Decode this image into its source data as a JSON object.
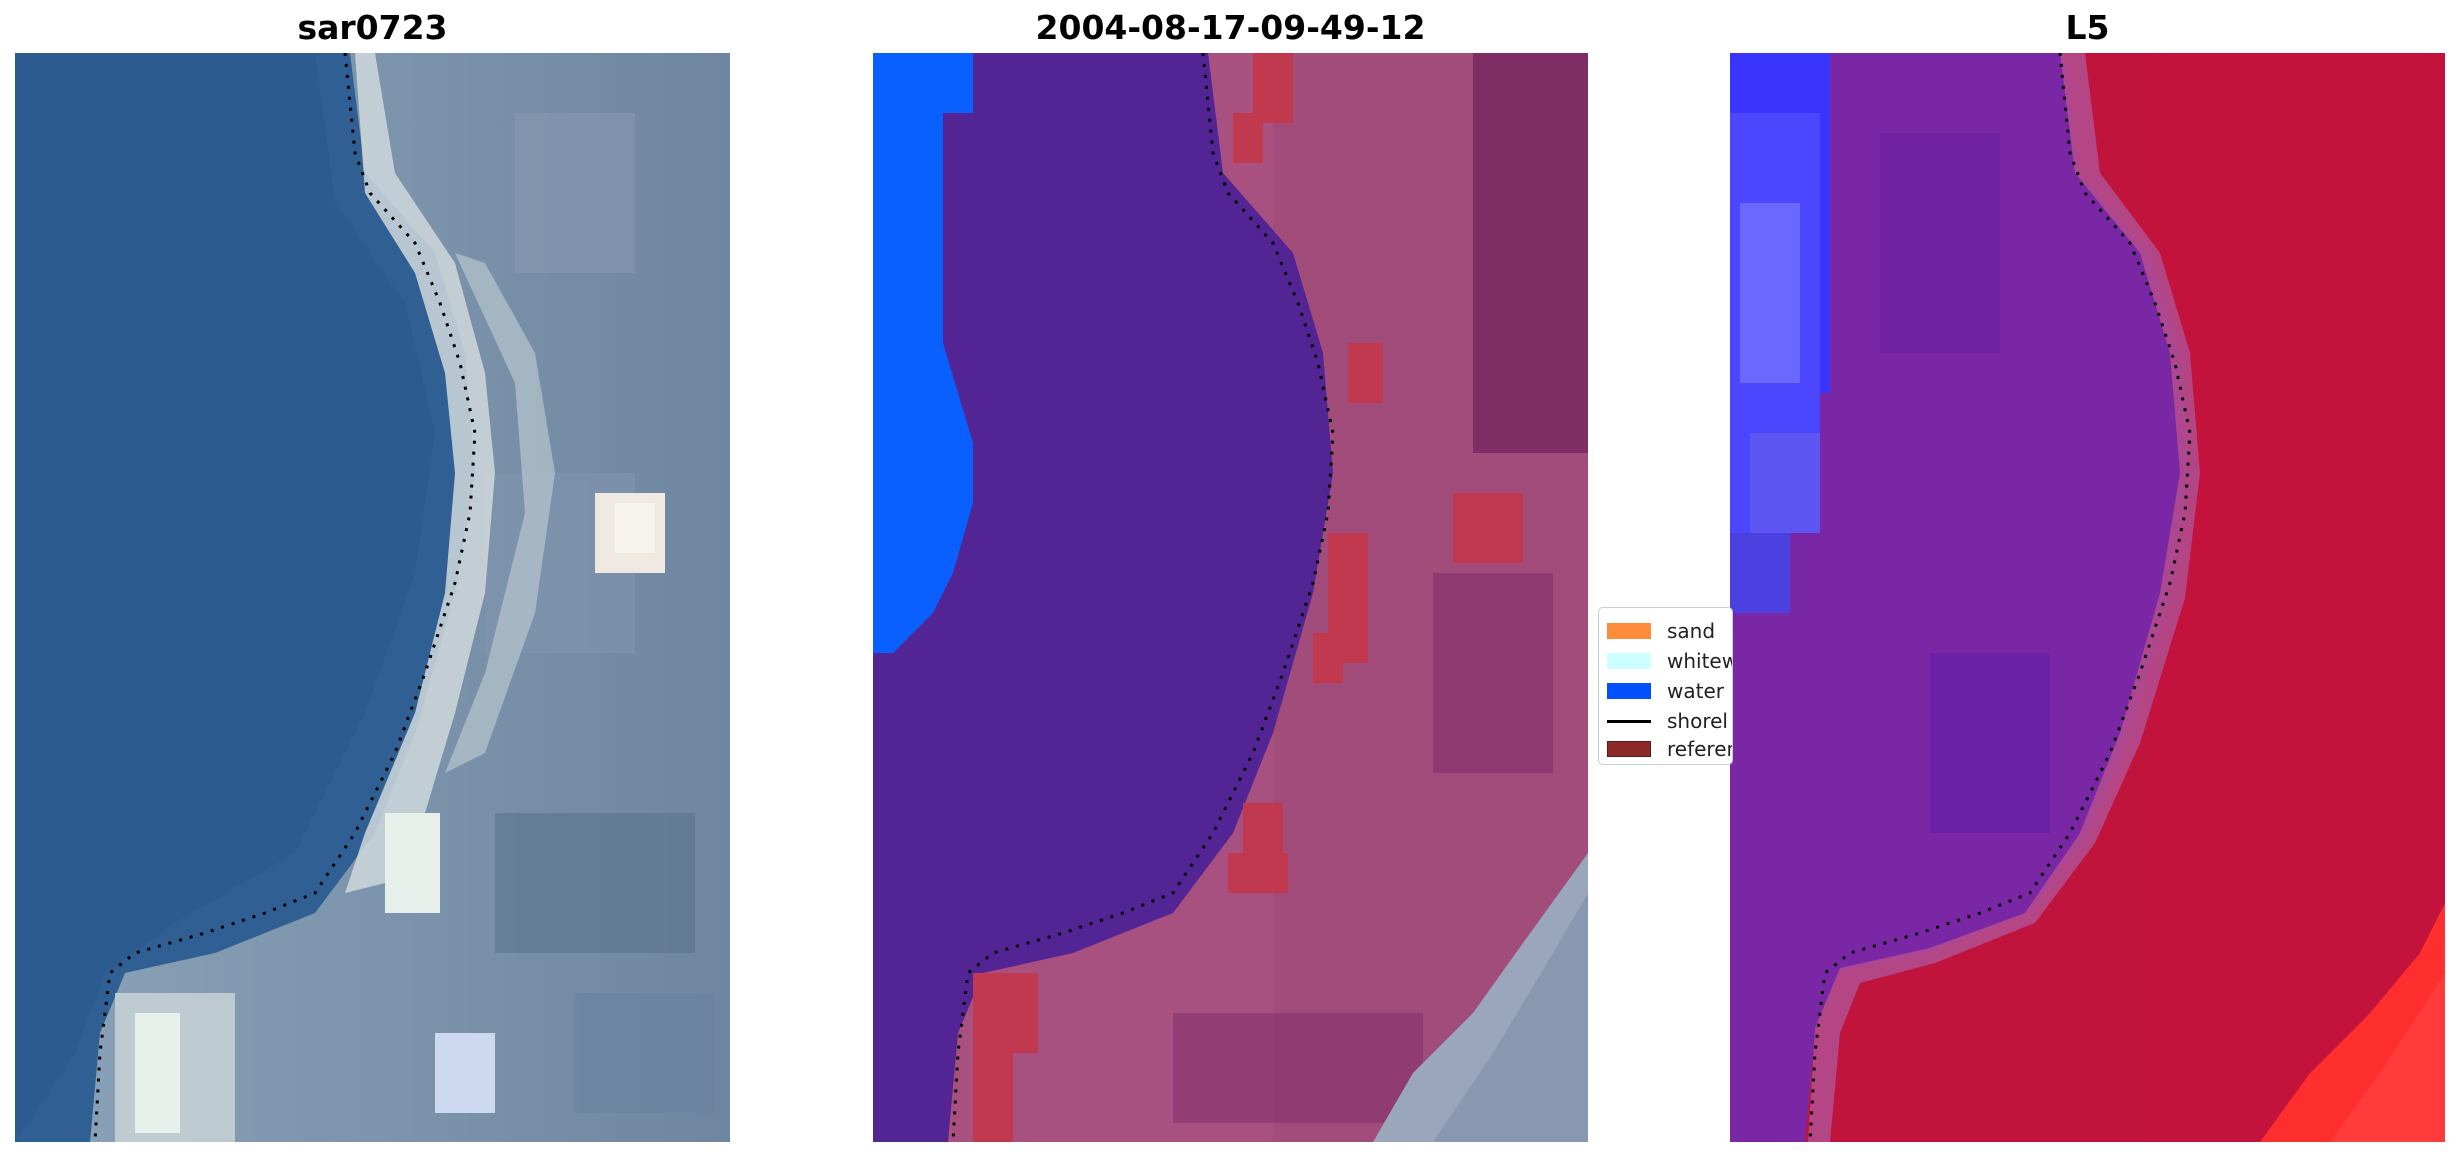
{
  "panels": [
    {
      "title": "sar0723",
      "image": "true-color satellite image of a coastal shoreline with dotted shoreline overlay"
    },
    {
      "title": "2004-08-17-09-49-12",
      "image": "classified satellite image with shoreline and reference overlay"
    },
    {
      "title": "L5",
      "image": "red/blue classification probability map with dotted shoreline overlay"
    }
  ],
  "legend": {
    "items": [
      {
        "label": "sand",
        "color": "#ff8c3a"
      },
      {
        "label": "whitew",
        "color": "#ccffff"
      },
      {
        "label": "water",
        "color": "#0050ff"
      },
      {
        "label": "shorel",
        "color": "#000000"
      },
      {
        "label": "referen",
        "color": "#8c2a2a"
      }
    ]
  }
}
